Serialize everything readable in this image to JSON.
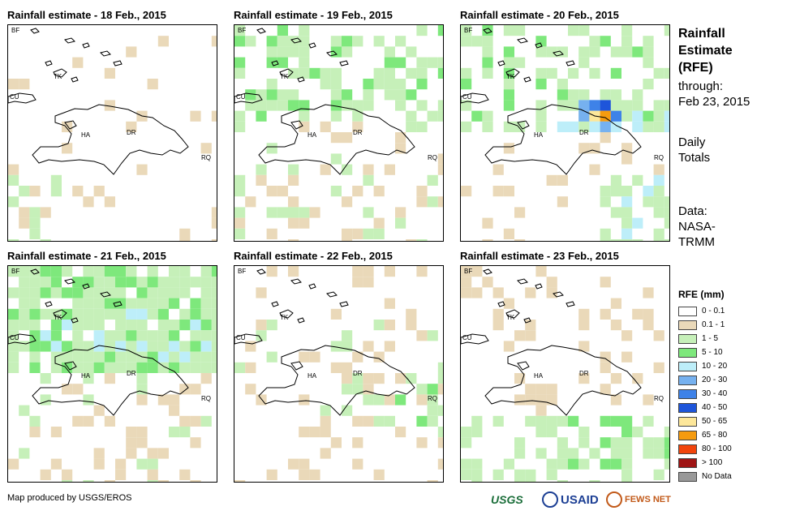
{
  "panels": [
    {
      "title": "Rainfall estimate - 18 Feb., 2015",
      "day": 0
    },
    {
      "title": "Rainfall estimate - 19 Feb., 2015",
      "day": 1
    },
    {
      "title": "Rainfall estimate - 20 Feb., 2015",
      "day": 2
    },
    {
      "title": "Rainfall estimate - 21 Feb., 2015",
      "day": 3
    },
    {
      "title": "Rainfall estimate - 22 Feb., 2015",
      "day": 4
    },
    {
      "title": "Rainfall estimate - 23 Feb., 2015",
      "day": 5
    }
  ],
  "map_labels": {
    "bf": "BF",
    "tk": "TK",
    "cu": "CU",
    "ha": "HA",
    "dr": "DR",
    "rq": "RQ"
  },
  "side": {
    "title_line1": "Rainfall",
    "title_line2": "Estimate",
    "title_line3": "(RFE)",
    "through_label": "through:",
    "through_date": "Feb 23, 2015",
    "totals_line1": "Daily",
    "totals_line2": "Totals",
    "data_line1": "Data:",
    "data_line2": "NASA-",
    "data_line3": "TRMM"
  },
  "legend": {
    "title": "RFE (mm)",
    "items": [
      {
        "label": "0 - 0.1",
        "color": "#ffffff"
      },
      {
        "label": "0.1 - 1",
        "color": "#ead9b9"
      },
      {
        "label": "1 - 5",
        "color": "#c6f0b9"
      },
      {
        "label": "5 - 10",
        "color": "#7ee87c"
      },
      {
        "label": "10 - 20",
        "color": "#bdeef9"
      },
      {
        "label": "20 - 30",
        "color": "#76b1ef"
      },
      {
        "label": "30 - 40",
        "color": "#3e82e8"
      },
      {
        "label": "40 - 50",
        "color": "#1e55da"
      },
      {
        "label": "50 - 65",
        "color": "#fde79a"
      },
      {
        "label": "65 - 80",
        "color": "#f59b0f"
      },
      {
        "label": "80 - 100",
        "color": "#f1440c"
      },
      {
        "label": "> 100",
        "color": "#9f1414"
      },
      {
        "label": "No Data",
        "color": "#999999"
      }
    ]
  },
  "footer": {
    "credit": "Map produced by USGS/EROS",
    "logo_usgs": "USGS",
    "logo_usaid": "USAID",
    "logo_fews": "FEWS NET"
  }
}
